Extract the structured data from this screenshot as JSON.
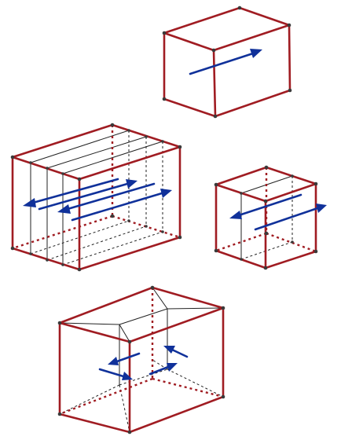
{
  "colors": {
    "edge": "#a01c22",
    "thin": "#222222",
    "arrow": "#10319a",
    "vertex": "#3a3a3a",
    "background": "#ffffff"
  },
  "figures": [
    {
      "name": "single-vector-box",
      "arrow_count": 1
    },
    {
      "name": "four-slab-box",
      "arrow_count": 4
    },
    {
      "name": "two-slab-box",
      "arrow_count": 2
    },
    {
      "name": "frustum-partition-box",
      "arrow_count": 4
    }
  ]
}
